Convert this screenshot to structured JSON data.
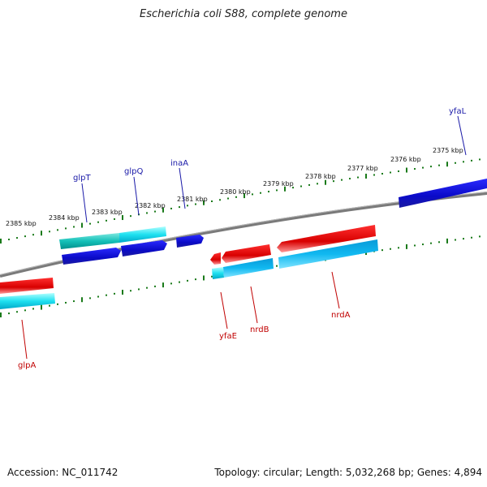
{
  "header": {
    "title": "Escherichia coli S88, complete genome"
  },
  "footer": {
    "accession": "Accession: NC_011742",
    "summary": "Topology: circular; Length: 5,032,268 bp; Genes: 4,894"
  },
  "colors": {
    "forward_gene": "#e00000",
    "reverse_gene": "#1414d6",
    "forward_cds": "#22d8e8",
    "reverse_cds": "#00c4c4",
    "scale_ticks": "#1a7a1a",
    "backbone": "#808080"
  },
  "chart_data": {
    "type": "genome_map",
    "scale_labels": [
      "2385 kbp",
      "2384 kbp",
      "2383 kbp",
      "2382 kbp",
      "2381 kbp",
      "2380 kbp",
      "2379 kbp",
      "2378 kbp",
      "2377 kbp",
      "2376 kbp",
      "2375 kbp"
    ],
    "genes_top": [
      {
        "name": "glpT",
        "strand": "-"
      },
      {
        "name": "glpQ",
        "strand": "-"
      },
      {
        "name": "inaA",
        "strand": "-"
      },
      {
        "name": "yfaL",
        "strand": "-"
      }
    ],
    "genes_bottom": [
      {
        "name": "glpA",
        "strand": "+"
      },
      {
        "name": "yfaE",
        "strand": "+"
      },
      {
        "name": "nrdB",
        "strand": "+"
      },
      {
        "name": "nrdA",
        "strand": "+"
      }
    ]
  }
}
